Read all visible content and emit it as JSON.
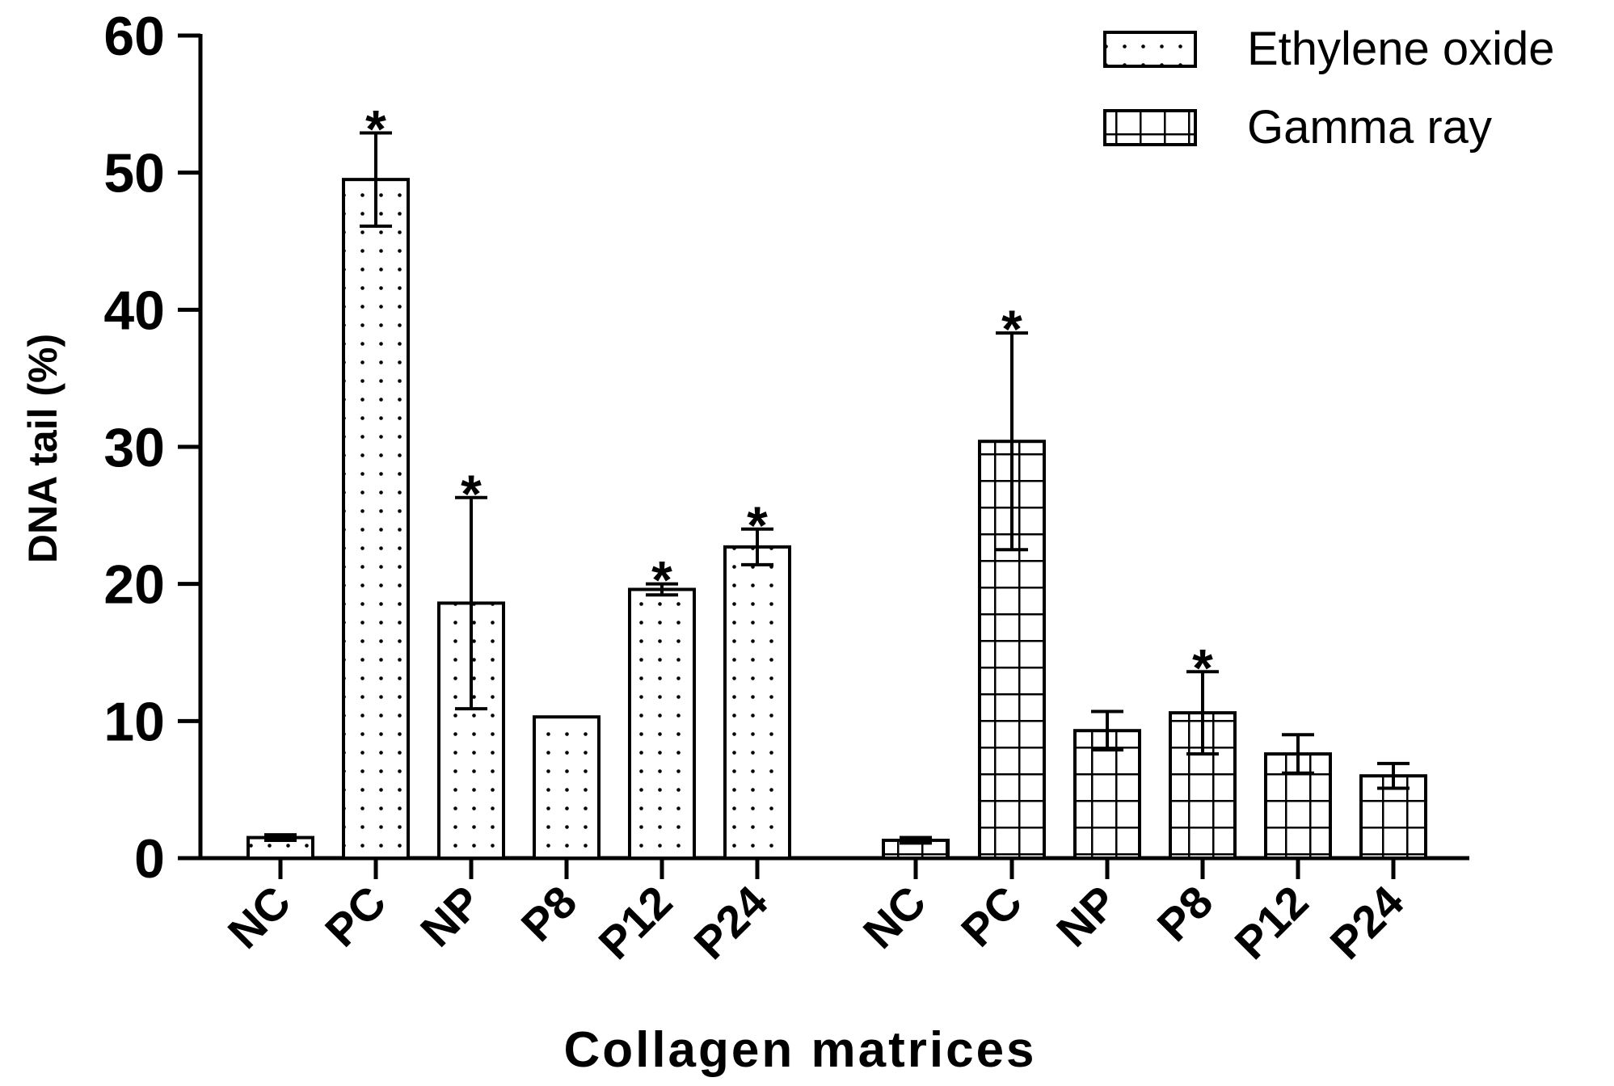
{
  "chart_data": {
    "type": "bar",
    "title": "",
    "xlabel": "Collagen matrices",
    "ylabel": "DNA tail (%)",
    "ylim": [
      0,
      60
    ],
    "yticks": [
      0,
      10,
      20,
      30,
      40,
      50,
      60
    ],
    "ytick_labels": [
      "0",
      "10",
      "20",
      "30",
      "40",
      "50",
      "60"
    ],
    "grid": false,
    "legend_position": "top-right",
    "significance_marker": "*",
    "series": [
      {
        "name": "Ethylene oxide",
        "pattern": "dots",
        "categories": [
          "NC",
          "PC",
          "NP",
          "P8",
          "P12",
          "P24"
        ],
        "values": [
          1.5,
          49.5,
          18.6,
          10.3,
          19.6,
          22.7
        ],
        "errors": [
          0.2,
          3.4,
          7.7,
          0,
          0.4,
          1.3
        ],
        "significant": [
          false,
          true,
          true,
          false,
          true,
          true
        ]
      },
      {
        "name": "Gamma ray",
        "pattern": "grid",
        "categories": [
          "NC",
          "PC",
          "NP",
          "P8",
          "P12",
          "P24"
        ],
        "values": [
          1.3,
          30.4,
          9.3,
          10.6,
          7.6,
          6.0
        ],
        "errors": [
          0.2,
          7.9,
          1.4,
          3.0,
          1.4,
          0.9
        ],
        "significant": [
          false,
          true,
          false,
          true,
          false,
          false
        ]
      }
    ]
  },
  "colors": {
    "ink": "#000000",
    "background": "#ffffff"
  }
}
